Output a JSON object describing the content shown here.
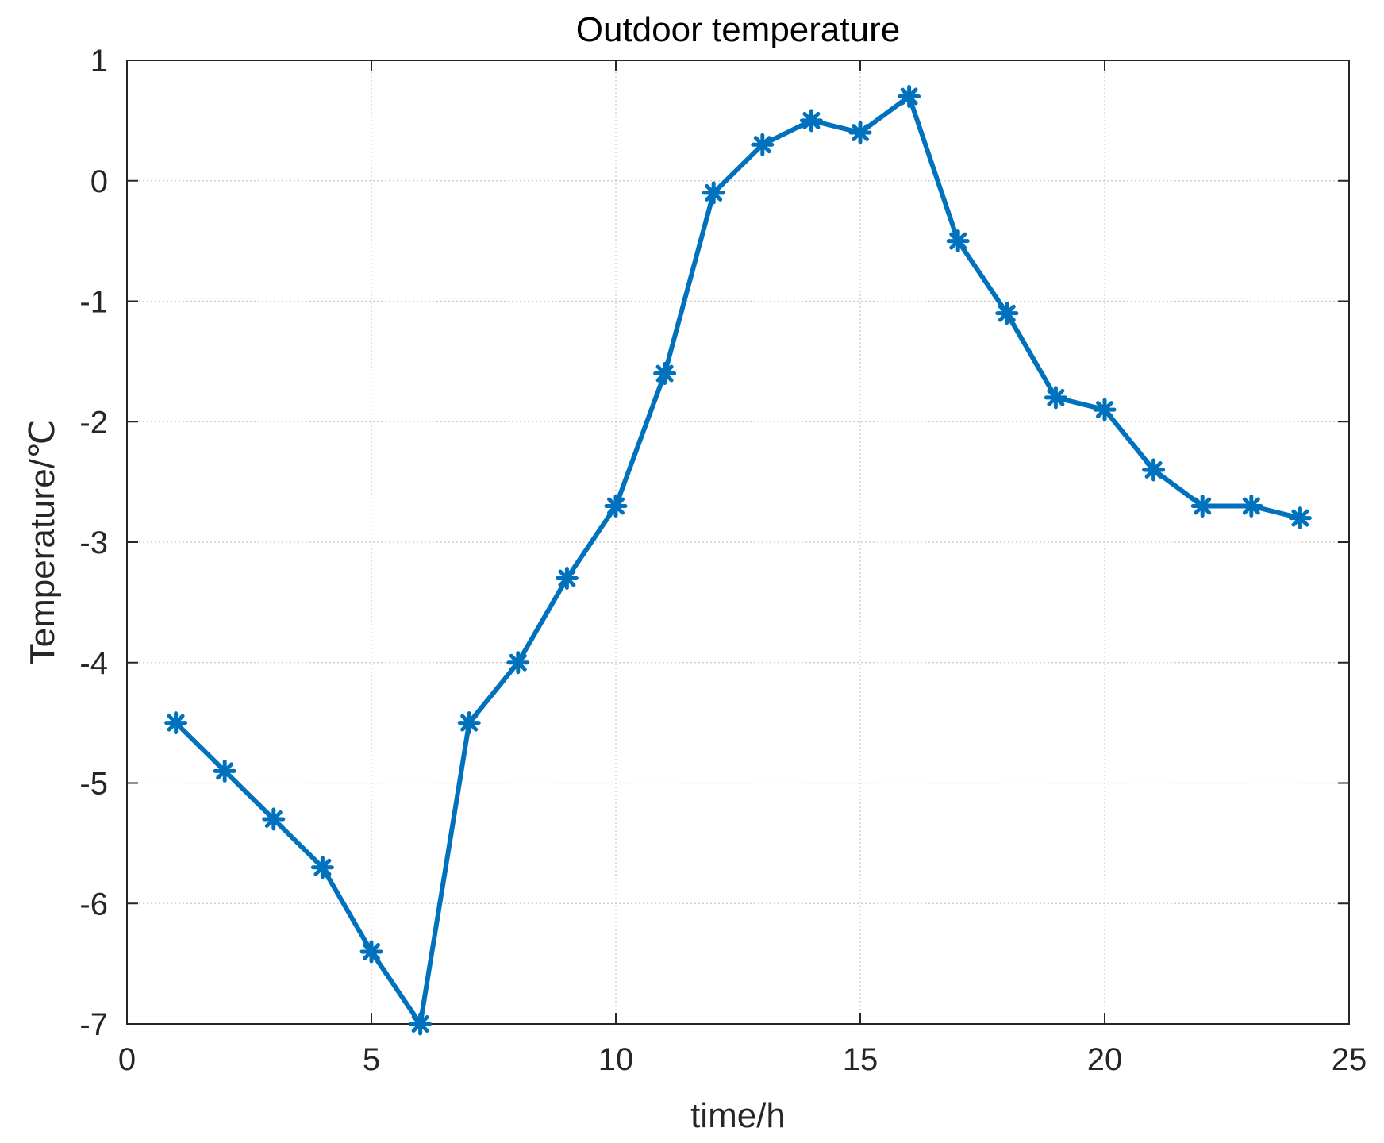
{
  "chart_data": {
    "type": "line",
    "title": "Outdoor temperature",
    "xlabel": "time/h",
    "ylabel": "Temperature/℃",
    "xlim": [
      0,
      25
    ],
    "ylim": [
      -7,
      1
    ],
    "xticks": [
      0,
      5,
      10,
      15,
      20,
      25
    ],
    "yticks": [
      -7,
      -6,
      -5,
      -4,
      -3,
      -2,
      -1,
      0,
      1
    ],
    "grid": true,
    "legend": "none",
    "series": [
      {
        "color": "#0072BD",
        "marker": "asterisk",
        "x": [
          1,
          2,
          3,
          4,
          5,
          6,
          7,
          8,
          9,
          10,
          11,
          12,
          13,
          14,
          15,
          16,
          17,
          18,
          19,
          20,
          21,
          22,
          23,
          24
        ],
        "y": [
          -4.5,
          -4.9,
          -5.3,
          -5.7,
          -6.4,
          -7.0,
          -4.5,
          -4.0,
          -3.3,
          -2.7,
          -1.6,
          -0.1,
          0.3,
          0.5,
          0.4,
          0.7,
          -0.5,
          -1.1,
          -1.8,
          -1.9,
          -2.4,
          -2.7,
          -2.7,
          -2.8
        ]
      }
    ]
  }
}
